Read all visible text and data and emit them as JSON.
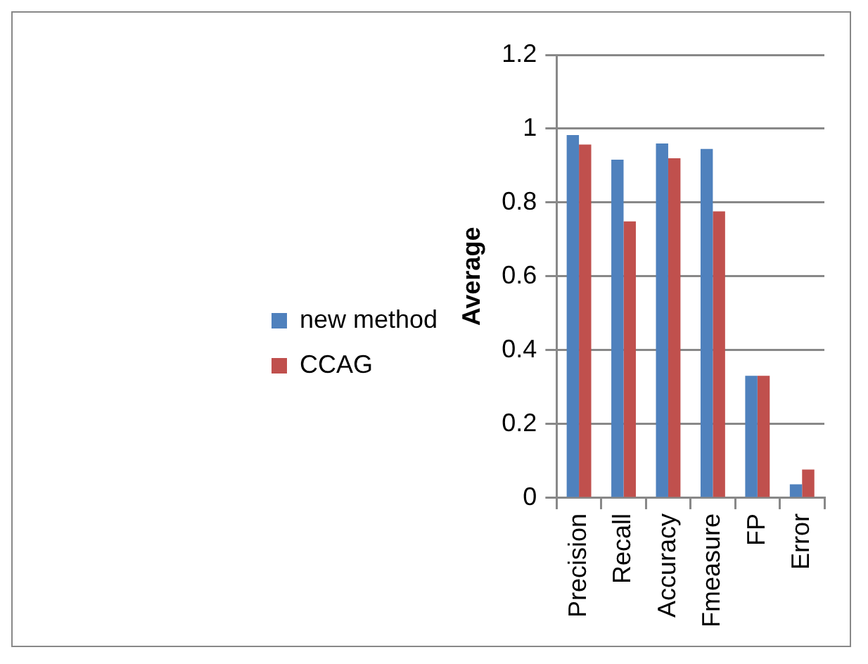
{
  "chart_data": {
    "type": "bar",
    "ylabel": "Average",
    "categories": [
      "Precision",
      "Recall",
      "Accuracy",
      "Fmeasure",
      "FP",
      "Error"
    ],
    "series": [
      {
        "name": "new method",
        "color": "#4f81bd",
        "values": [
          0.983,
          0.916,
          0.96,
          0.945,
          0.331,
          0.037
        ]
      },
      {
        "name": "CCAG",
        "color": "#c0504d",
        "values": [
          0.957,
          0.749,
          0.92,
          0.776,
          0.331,
          0.077
        ]
      }
    ],
    "ylim": [
      0,
      1.2
    ],
    "yticks": [
      0,
      0.2,
      0.4,
      0.6,
      0.8,
      1,
      1.2
    ],
    "grid": "y",
    "legend": "left"
  }
}
